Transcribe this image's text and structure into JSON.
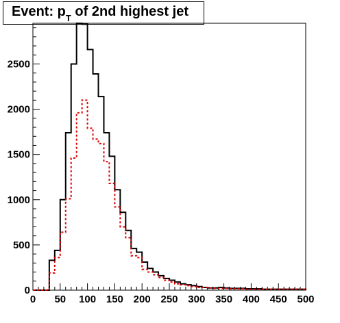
{
  "chart_data": {
    "type": "histogram",
    "title": {
      "pre": "Event: p",
      "sub": "T",
      "post": " of 2nd highest jet"
    },
    "xlim": [
      0,
      500
    ],
    "ylim": [
      0,
      2950
    ],
    "x_ticks": [
      0,
      50,
      100,
      150,
      200,
      250,
      300,
      350,
      400,
      450,
      500
    ],
    "y_ticks": [
      0,
      500,
      1000,
      1500,
      2000,
      2500
    ],
    "bin_width": 10,
    "grid": false,
    "series": [
      {
        "style": "solid",
        "color": "#000000",
        "values": [
          0,
          0,
          0,
          330,
          440,
          1000,
          1740,
          2500,
          2950,
          2940,
          2660,
          2390,
          2140,
          1740,
          1480,
          1110,
          860,
          660,
          460,
          420,
          310,
          240,
          200,
          160,
          130,
          110,
          90,
          70,
          60,
          50,
          40,
          30,
          25,
          25,
          30,
          25,
          20,
          20,
          20,
          15,
          15,
          15,
          10,
          10,
          10,
          10,
          10,
          10,
          10,
          10
        ]
      },
      {
        "style": "dashed",
        "color": "#dd0000",
        "values": [
          0,
          0,
          0,
          190,
          360,
          640,
          1010,
          1460,
          1960,
          2100,
          1790,
          1670,
          1620,
          1420,
          1180,
          920,
          700,
          580,
          380,
          360,
          230,
          200,
          170,
          140,
          110,
          90,
          70,
          60,
          50,
          40,
          30,
          30,
          25,
          20,
          20,
          20,
          15,
          15,
          15,
          10,
          10,
          10,
          10,
          10,
          10,
          10,
          10,
          10,
          10,
          10
        ]
      }
    ]
  }
}
